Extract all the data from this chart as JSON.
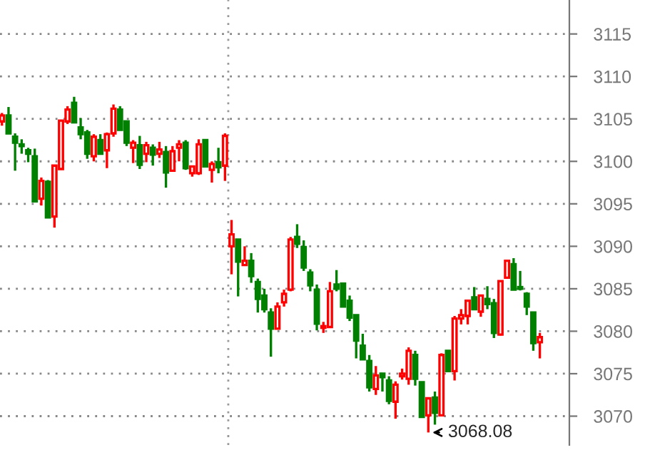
{
  "chart_data": {
    "type": "candlestick",
    "categories": [
      null,
      null,
      null,
      null,
      null,
      null,
      null,
      null,
      null,
      null,
      null,
      null,
      null,
      null,
      null,
      null,
      null,
      null,
      null,
      null,
      null,
      null,
      null,
      null,
      null,
      null,
      null,
      null,
      null,
      null,
      null,
      null,
      null,
      null,
      null,
      null,
      null,
      null,
      null,
      null,
      null,
      null,
      null,
      null,
      null,
      null,
      null,
      null,
      null,
      null,
      null,
      null,
      null,
      null,
      null,
      null,
      null,
      null,
      null,
      null,
      null,
      null,
      null,
      null,
      null,
      null,
      null,
      null,
      null,
      null,
      null,
      null,
      null,
      null,
      null,
      null,
      null,
      null,
      null,
      null,
      null,
      null,
      null
    ],
    "ohlc": [
      [
        3104.7,
        3105.7,
        3104.2,
        3105.4
      ],
      [
        3105.4,
        3106.4,
        3103.3,
        3103.3
      ],
      [
        3102.9,
        3103.3,
        3098.9,
        3102.2
      ],
      [
        3102.0,
        3102.6,
        3100.9,
        3101.8
      ],
      [
        3101.3,
        3101.6,
        3099.9,
        3100.9
      ],
      [
        3100.6,
        3101.5,
        3095.3,
        3095.3
      ],
      [
        3095.6,
        3098.1,
        3094.8,
        3097.7
      ],
      [
        3097.6,
        3097.8,
        3093.4,
        3093.4
      ],
      [
        3093.5,
        3099.5,
        3092.2,
        3099.5
      ],
      [
        3099.1,
        3104.9,
        3099.1,
        3104.8
      ],
      [
        3104.7,
        3106.5,
        3104.4,
        3106.1
      ],
      [
        3106.9,
        3107.6,
        3104.6,
        3104.6
      ],
      [
        3104.0,
        3105.1,
        3102.6,
        3103.2
      ],
      [
        3103.4,
        3103.7,
        3100.3,
        3100.9
      ],
      [
        3100.6,
        3103.2,
        3100.0,
        3102.9
      ],
      [
        3102.5,
        3103.2,
        3100.9,
        3100.9
      ],
      [
        3101.3,
        3103.4,
        3099.2,
        3103.2
      ],
      [
        3103.3,
        3106.7,
        3102.9,
        3106.2
      ],
      [
        3106.1,
        3106.5,
        3103.7,
        3103.7
      ],
      [
        3104.7,
        3104.7,
        3101.8,
        3102.2
      ],
      [
        3101.6,
        3102.5,
        3099.8,
        3102.2
      ],
      [
        3101.9,
        3103.0,
        3099.1,
        3099.6
      ],
      [
        3100.9,
        3102.3,
        3099.9,
        3101.9
      ],
      [
        3101.6,
        3102.0,
        3099.5,
        3100.8
      ],
      [
        3100.9,
        3102.3,
        3100.4,
        3101.4
      ],
      [
        3101.1,
        3101.8,
        3096.9,
        3098.7
      ],
      [
        3098.9,
        3101.8,
        3098.9,
        3101.2
      ],
      [
        3101.6,
        3102.5,
        3100.0,
        3102.0
      ],
      [
        3102.2,
        3102.5,
        3099.0,
        3099.2
      ],
      [
        3098.6,
        3099.4,
        3098.2,
        3099.4
      ],
      [
        3098.6,
        3102.6,
        3098.4,
        3102.0
      ],
      [
        3102.5,
        3102.5,
        3099.4,
        3099.4
      ],
      [
        3099.0,
        3100.0,
        3097.5,
        3099.7
      ],
      [
        3099.9,
        3101.6,
        3098.6,
        3099.3
      ],
      [
        3099.5,
        3103.3,
        3097.7,
        3103.0
      ],
      [
        3090.0,
        3093.1,
        3086.7,
        3091.4
      ],
      [
        3090.8,
        3090.8,
        3084.1,
        3088.2
      ],
      [
        3087.8,
        3090.0,
        3087.8,
        3088.3
      ],
      [
        3088.3,
        3089.2,
        3085.7,
        3086.5
      ],
      [
        3085.8,
        3086.2,
        3082.2,
        3083.8
      ],
      [
        3084.2,
        3085.0,
        3082.2,
        3082.6
      ],
      [
        3082.2,
        3082.7,
        3077.0,
        3080.3
      ],
      [
        3080.3,
        3083.4,
        3080.3,
        3082.9
      ],
      [
        3083.4,
        3084.9,
        3082.9,
        3084.4
      ],
      [
        3084.9,
        3091.1,
        3084.7,
        3090.8
      ],
      [
        3091.1,
        3092.6,
        3089.8,
        3090.3
      ],
      [
        3089.9,
        3090.7,
        3087.1,
        3087.5
      ],
      [
        3086.9,
        3087.3,
        3084.7,
        3085.4
      ],
      [
        3084.9,
        3085.5,
        3080.1,
        3080.9
      ],
      [
        3080.4,
        3081.1,
        3079.8,
        3080.6
      ],
      [
        3080.5,
        3085.8,
        3080.4,
        3084.7
      ],
      [
        3085.5,
        3087.2,
        3084.7,
        3085.0
      ],
      [
        3085.6,
        3085.6,
        3082.9,
        3082.9
      ],
      [
        3083.6,
        3084.2,
        3081.2,
        3081.6
      ],
      [
        3081.9,
        3081.9,
        3076.8,
        3078.9
      ],
      [
        3078.3,
        3079.7,
        3076.7,
        3076.7
      ],
      [
        3076.5,
        3077.2,
        3072.9,
        3073.4
      ],
      [
        3073.2,
        3075.9,
        3072.5,
        3074.8
      ],
      [
        3075.0,
        3075.0,
        3072.9,
        3074.6
      ],
      [
        3074.2,
        3074.7,
        3071.4,
        3071.8
      ],
      [
        3071.7,
        3074.1,
        3069.7,
        3073.7
      ],
      [
        3074.7,
        3075.6,
        3074.3,
        3075.0
      ],
      [
        3074.4,
        3078.1,
        3073.7,
        3077.7
      ],
      [
        3077.2,
        3077.7,
        3073.6,
        3074.4
      ],
      [
        3074.0,
        3074.0,
        3069.8,
        3069.9
      ],
      [
        3070.1,
        3072.1,
        3068.08,
        3072.1
      ],
      [
        3072.2,
        3072.9,
        3069.0,
        3070.4
      ],
      [
        3070.1,
        3077.4,
        3070.1,
        3077.2
      ],
      [
        3077.7,
        3077.7,
        3075.3,
        3075.3
      ],
      [
        3075.3,
        3081.8,
        3074.2,
        3081.5
      ],
      [
        3081.5,
        3082.6,
        3080.8,
        3081.9
      ],
      [
        3081.8,
        3083.7,
        3080.8,
        3083.6
      ],
      [
        3084.0,
        3085.2,
        3082.5,
        3082.6
      ],
      [
        3082.3,
        3084.3,
        3081.7,
        3084.2
      ],
      [
        3083.8,
        3085.3,
        3082.6,
        3083.2
      ],
      [
        3083.3,
        3083.8,
        3079.2,
        3079.8
      ],
      [
        3079.6,
        3085.9,
        3079.5,
        3085.9
      ],
      [
        3086.3,
        3088.4,
        3086.2,
        3088.3
      ],
      [
        3087.9,
        3088.6,
        3084.9,
        3084.9
      ],
      [
        3085.2,
        3087.1,
        3084.8,
        3085.0
      ],
      [
        3084.4,
        3084.6,
        3081.9,
        3082.9
      ],
      [
        3082.2,
        3082.2,
        3077.7,
        3078.6
      ],
      [
        3078.7,
        3079.8,
        3076.8,
        3079.3
      ]
    ],
    "ylim": [
      3066.6,
      3119.0
    ],
    "yticks": [
      3070,
      3075,
      3080,
      3085,
      3090,
      3095,
      3100,
      3105,
      3110,
      3115
    ],
    "grid": "y",
    "annotations": [
      "3068.08"
    ]
  }
}
